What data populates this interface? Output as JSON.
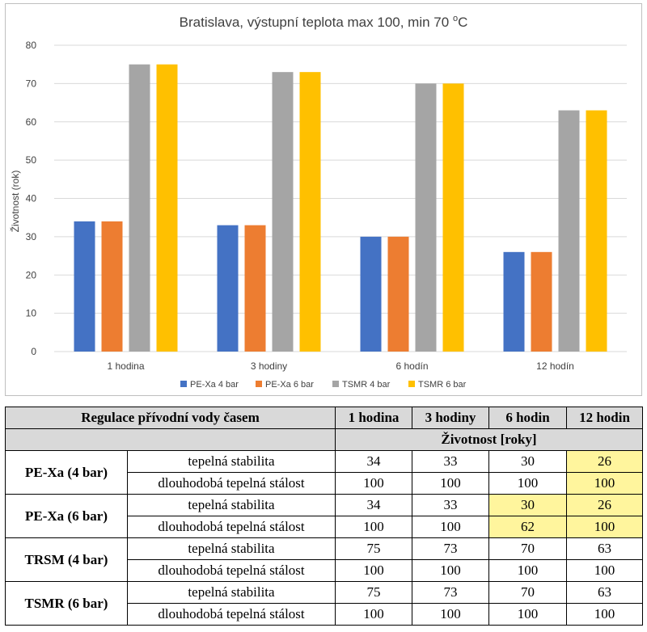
{
  "chart_data": {
    "type": "bar",
    "title": "Bratislava, výstupní teplota max 100, min 70 °C",
    "title_main": "Bratislava, výstupní teplota max 100, min 70 ",
    "title_sup": "o",
    "title_end": "C",
    "ylabel": "Životnost (rok)",
    "xlabel": "",
    "ylim": [
      0,
      80
    ],
    "yticks": [
      "0",
      "10",
      "20",
      "30",
      "40",
      "50",
      "60",
      "70",
      "80"
    ],
    "grid": true,
    "legend_position": "bottom",
    "categories": [
      "1 hodina",
      "3 hodiny",
      "6 hodín",
      "12 hodín"
    ],
    "series": [
      {
        "name": "PE-Xa 4 bar",
        "color": "#4472c4",
        "values": [
          34,
          33,
          30,
          26
        ]
      },
      {
        "name": "PE-Xa 6 bar",
        "color": "#ed7d31",
        "values": [
          34,
          33,
          30,
          26
        ]
      },
      {
        "name": "TSMR 4 bar",
        "color": "#a5a5a5",
        "values": [
          75,
          73,
          70,
          63
        ]
      },
      {
        "name": "TSMR 6 bar",
        "color": "#ffc000",
        "values": [
          75,
          73,
          70,
          63
        ]
      }
    ]
  },
  "table": {
    "header_label": "Regulace přívodní vody časem",
    "columns": [
      "1 hodina",
      "3 hodiny",
      "6 hodin",
      "12 hodin"
    ],
    "subheader": "Životnost  [roky]",
    "highlight_color": "#fff59d",
    "groups": [
      {
        "label": "PE-Xa (4 bar)",
        "rows": [
          {
            "label": "tepelná stabilita",
            "values": [
              "34",
              "33",
              "30",
              "26"
            ]
          },
          {
            "label": "dlouhodobá tepelná stálost",
            "values": [
              "100",
              "100",
              "100",
              "100"
            ]
          }
        ]
      },
      {
        "label": "PE-Xa (6 bar)",
        "rows": [
          {
            "label": "tepelná stabilita",
            "values": [
              "34",
              "33",
              "30",
              "26"
            ]
          },
          {
            "label": "dlouhodobá tepelná stálost",
            "values": [
              "100",
              "100",
              "62",
              "100"
            ]
          }
        ]
      },
      {
        "label": "TRSM (4 bar)",
        "rows": [
          {
            "label": "tepelná stabilita",
            "values": [
              "75",
              "73",
              "70",
              "63"
            ]
          },
          {
            "label": "dlouhodobá tepelná stálost",
            "values": [
              "100",
              "100",
              "100",
              "100"
            ]
          }
        ]
      },
      {
        "label": "TSMR (6 bar)",
        "rows": [
          {
            "label": "tepelná stabilita",
            "values": [
              "75",
              "73",
              "70",
              "63"
            ]
          },
          {
            "label": "dlouhodobá tepelná stálost",
            "values": [
              "100",
              "100",
              "100",
              "100"
            ]
          }
        ]
      }
    ]
  }
}
